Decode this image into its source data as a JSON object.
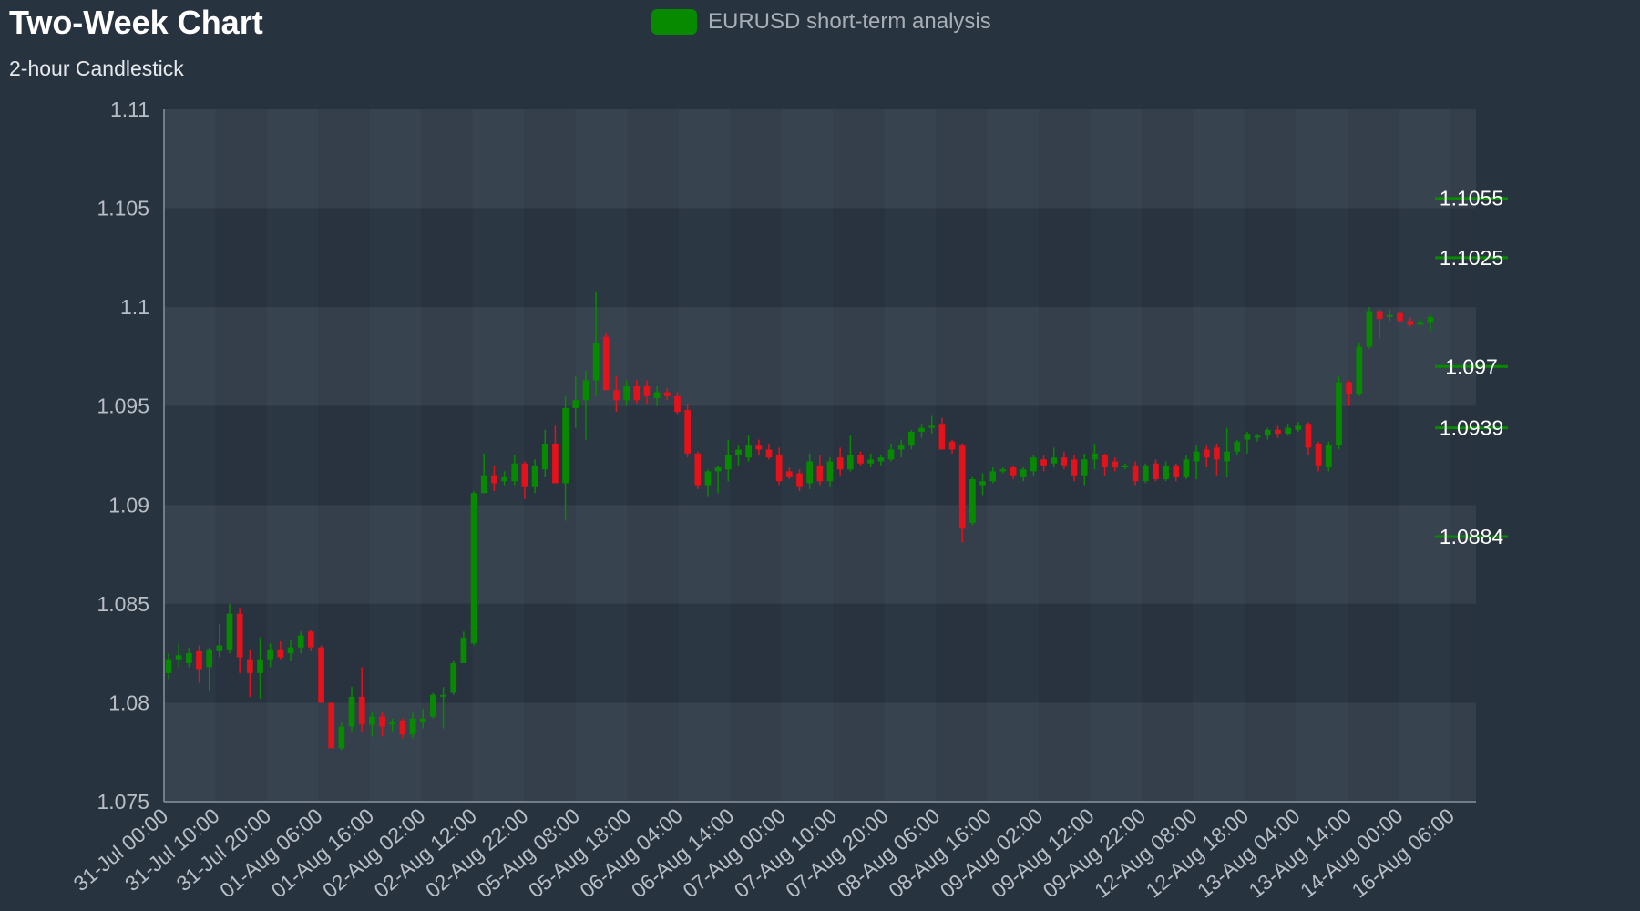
{
  "chart_data": {
    "type": "candlestick",
    "title": "Two-Week Chart",
    "subtitle": "2-hour Candlestick",
    "legend": {
      "label": "EURUSD short-term analysis",
      "color": "#078a00",
      "position": "top-center"
    },
    "colors": {
      "up": "#078a00",
      "down": "#e3121b",
      "background": "#283340",
      "plot_band_light": "#384350",
      "plot_band_dark": "#2c3744"
    },
    "ylim": [
      1.075,
      1.11
    ],
    "y_ticks": [
      "1.11",
      "1.105",
      "1.1",
      "1.095",
      "1.09",
      "1.085",
      "1.08",
      "1.075"
    ],
    "x_ticks": [
      "31-Jul 00:00",
      "31-Jul 10:00",
      "31-Jul 20:00",
      "01-Aug 06:00",
      "01-Aug 16:00",
      "02-Aug 02:00",
      "02-Aug 12:00",
      "02-Aug 22:00",
      "05-Aug 08:00",
      "05-Aug 18:00",
      "06-Aug 04:00",
      "06-Aug 14:00",
      "07-Aug 00:00",
      "07-Aug 10:00",
      "07-Aug 20:00",
      "08-Aug 06:00",
      "08-Aug 16:00",
      "09-Aug 02:00",
      "09-Aug 12:00",
      "09-Aug 22:00",
      "12-Aug 08:00",
      "12-Aug 18:00",
      "13-Aug 04:00",
      "13-Aug 14:00",
      "14-Aug 00:00",
      "16-Aug 06:00"
    ],
    "levels": [
      {
        "value": 1.1055,
        "label": "1.1055"
      },
      {
        "value": 1.1025,
        "label": "1.1025"
      },
      {
        "value": 1.097,
        "label": "1.097"
      },
      {
        "value": 1.0939,
        "label": "1.0939"
      },
      {
        "value": 1.0884,
        "label": "1.0884"
      }
    ],
    "candles": [
      {
        "o": 1.0815,
        "h": 1.0825,
        "l": 1.0812,
        "c": 1.0822
      },
      {
        "o": 1.0822,
        "h": 1.083,
        "l": 1.0818,
        "c": 1.0824
      },
      {
        "o": 1.082,
        "h": 1.0828,
        "l": 1.0818,
        "c": 1.0825
      },
      {
        "o": 1.0826,
        "h": 1.0829,
        "l": 1.081,
        "c": 1.0817
      },
      {
        "o": 1.0818,
        "h": 1.0828,
        "l": 1.0806,
        "c": 1.0827
      },
      {
        "o": 1.0826,
        "h": 1.084,
        "l": 1.0823,
        "c": 1.0829
      },
      {
        "o": 1.0827,
        "h": 1.085,
        "l": 1.0825,
        "c": 1.0845
      },
      {
        "o": 1.0845,
        "h": 1.0848,
        "l": 1.0815,
        "c": 1.0823
      },
      {
        "o": 1.0822,
        "h": 1.0827,
        "l": 1.0803,
        "c": 1.0815
      },
      {
        "o": 1.0815,
        "h": 1.0833,
        "l": 1.0802,
        "c": 1.0822
      },
      {
        "o": 1.0822,
        "h": 1.083,
        "l": 1.0818,
        "c": 1.0827
      },
      {
        "o": 1.0827,
        "h": 1.0831,
        "l": 1.0822,
        "c": 1.0823
      },
      {
        "o": 1.0825,
        "h": 1.0832,
        "l": 1.0821,
        "c": 1.0828
      },
      {
        "o": 1.0828,
        "h": 1.0836,
        "l": 1.0825,
        "c": 1.0834
      },
      {
        "o": 1.0836,
        "h": 1.0837,
        "l": 1.0826,
        "c": 1.0828
      },
      {
        "o": 1.0828,
        "h": 1.0829,
        "l": 1.08,
        "c": 1.08
      },
      {
        "o": 1.08,
        "h": 1.08,
        "l": 1.0777,
        "c": 1.0777
      },
      {
        "o": 1.0777,
        "h": 1.079,
        "l": 1.0776,
        "c": 1.0788
      },
      {
        "o": 1.0788,
        "h": 1.0808,
        "l": 1.0785,
        "c": 1.0803
      },
      {
        "o": 1.0803,
        "h": 1.0818,
        "l": 1.0785,
        "c": 1.0789
      },
      {
        "o": 1.0789,
        "h": 1.0795,
        "l": 1.0783,
        "c": 1.0793
      },
      {
        "o": 1.0793,
        "h": 1.0795,
        "l": 1.0783,
        "c": 1.0788
      },
      {
        "o": 1.0789,
        "h": 1.0792,
        "l": 1.0785,
        "c": 1.079
      },
      {
        "o": 1.0791,
        "h": 1.0792,
        "l": 1.0782,
        "c": 1.0784
      },
      {
        "o": 1.0784,
        "h": 1.0795,
        "l": 1.0782,
        "c": 1.0792
      },
      {
        "o": 1.079,
        "h": 1.0797,
        "l": 1.0787,
        "c": 1.0792
      },
      {
        "o": 1.0793,
        "h": 1.0805,
        "l": 1.0792,
        "c": 1.0804
      },
      {
        "o": 1.0803,
        "h": 1.0808,
        "l": 1.0787,
        "c": 1.0804
      },
      {
        "o": 1.0805,
        "h": 1.0821,
        "l": 1.0804,
        "c": 1.082
      },
      {
        "o": 1.082,
        "h": 1.0836,
        "l": 1.082,
        "c": 1.0833
      },
      {
        "o": 1.083,
        "h": 1.0907,
        "l": 1.0829,
        "c": 1.0906
      },
      {
        "o": 1.0906,
        "h": 1.0926,
        "l": 1.0906,
        "c": 1.0915
      },
      {
        "o": 1.0915,
        "h": 1.092,
        "l": 1.0907,
        "c": 1.0911
      },
      {
        "o": 1.0912,
        "h": 1.0917,
        "l": 1.091,
        "c": 1.0914
      },
      {
        "o": 1.0912,
        "h": 1.0925,
        "l": 1.091,
        "c": 1.0921
      },
      {
        "o": 1.0921,
        "h": 1.0922,
        "l": 1.0903,
        "c": 1.0909
      },
      {
        "o": 1.0909,
        "h": 1.0923,
        "l": 1.0906,
        "c": 1.092
      },
      {
        "o": 1.0918,
        "h": 1.0938,
        "l": 1.0914,
        "c": 1.0931
      },
      {
        "o": 1.0931,
        "h": 1.094,
        "l": 1.0911,
        "c": 1.0911
      },
      {
        "o": 1.0911,
        "h": 1.0955,
        "l": 1.0892,
        "c": 1.0949
      },
      {
        "o": 1.0949,
        "h": 1.0965,
        "l": 1.0939,
        "c": 1.0953
      },
      {
        "o": 1.0953,
        "h": 1.0968,
        "l": 1.0933,
        "c": 1.0963
      },
      {
        "o": 1.0963,
        "h": 1.1008,
        "l": 1.0955,
        "c": 1.0982
      },
      {
        "o": 1.0985,
        "h": 1.0987,
        "l": 1.0958,
        "c": 1.0958
      },
      {
        "o": 1.0958,
        "h": 1.0965,
        "l": 1.0947,
        "c": 1.0953
      },
      {
        "o": 1.0953,
        "h": 1.0963,
        "l": 1.095,
        "c": 1.096
      },
      {
        "o": 1.096,
        "h": 1.0963,
        "l": 1.0951,
        "c": 1.0953
      },
      {
        "o": 1.096,
        "h": 1.0963,
        "l": 1.0951,
        "c": 1.0955
      },
      {
        "o": 1.0954,
        "h": 1.096,
        "l": 1.095,
        "c": 1.0957
      },
      {
        "o": 1.0957,
        "h": 1.0959,
        "l": 1.0953,
        "c": 1.0955
      },
      {
        "o": 1.0955,
        "h": 1.0957,
        "l": 1.0946,
        "c": 1.0947
      },
      {
        "o": 1.0948,
        "h": 1.0951,
        "l": 1.0924,
        "c": 1.0926
      },
      {
        "o": 1.0926,
        "h": 1.0927,
        "l": 1.0908,
        "c": 1.091
      },
      {
        "o": 1.091,
        "h": 1.0918,
        "l": 1.0904,
        "c": 1.0917
      },
      {
        "o": 1.0917,
        "h": 1.092,
        "l": 1.0906,
        "c": 1.0919
      },
      {
        "o": 1.0918,
        "h": 1.0933,
        "l": 1.0912,
        "c": 1.0925
      },
      {
        "o": 1.0925,
        "h": 1.093,
        "l": 1.092,
        "c": 1.0928
      },
      {
        "o": 1.0924,
        "h": 1.0935,
        "l": 1.0922,
        "c": 1.093
      },
      {
        "o": 1.093,
        "h": 1.0933,
        "l": 1.0925,
        "c": 1.0928
      },
      {
        "o": 1.0928,
        "h": 1.0931,
        "l": 1.0923,
        "c": 1.0924
      },
      {
        "o": 1.0925,
        "h": 1.0929,
        "l": 1.091,
        "c": 1.0912
      },
      {
        "o": 1.0917,
        "h": 1.0919,
        "l": 1.0913,
        "c": 1.0914
      },
      {
        "o": 1.0916,
        "h": 1.0918,
        "l": 1.0907,
        "c": 1.0909
      },
      {
        "o": 1.0911,
        "h": 1.0926,
        "l": 1.0908,
        "c": 1.0922
      },
      {
        "o": 1.092,
        "h": 1.0925,
        "l": 1.091,
        "c": 1.0912
      },
      {
        "o": 1.0912,
        "h": 1.0924,
        "l": 1.0909,
        "c": 1.0922
      },
      {
        "o": 1.0924,
        "h": 1.0929,
        "l": 1.0915,
        "c": 1.0918
      },
      {
        "o": 1.0918,
        "h": 1.0935,
        "l": 1.0917,
        "c": 1.0925
      },
      {
        "o": 1.0925,
        "h": 1.0927,
        "l": 1.092,
        "c": 1.0921
      },
      {
        "o": 1.0921,
        "h": 1.0926,
        "l": 1.0919,
        "c": 1.0923
      },
      {
        "o": 1.0922,
        "h": 1.0925,
        "l": 1.092,
        "c": 1.0924
      },
      {
        "o": 1.0923,
        "h": 1.0931,
        "l": 1.0922,
        "c": 1.0928
      },
      {
        "o": 1.0928,
        "h": 1.0933,
        "l": 1.0924,
        "c": 1.093
      },
      {
        "o": 1.093,
        "h": 1.0938,
        "l": 1.0928,
        "c": 1.0937
      },
      {
        "o": 1.0937,
        "h": 1.0941,
        "l": 1.0934,
        "c": 1.0939
      },
      {
        "o": 1.0939,
        "h": 1.0945,
        "l": 1.0936,
        "c": 1.094
      },
      {
        "o": 1.0941,
        "h": 1.0944,
        "l": 1.0928,
        "c": 1.0928
      },
      {
        "o": 1.0932,
        "h": 1.0933,
        "l": 1.0926,
        "c": 1.0928
      },
      {
        "o": 1.093,
        "h": 1.0931,
        "l": 1.0881,
        "c": 1.0888
      },
      {
        "o": 1.0891,
        "h": 1.0914,
        "l": 1.089,
        "c": 1.0913
      },
      {
        "o": 1.091,
        "h": 1.0916,
        "l": 1.0905,
        "c": 1.0912
      },
      {
        "o": 1.0912,
        "h": 1.0919,
        "l": 1.0911,
        "c": 1.0917
      },
      {
        "o": 1.0917,
        "h": 1.0919,
        "l": 1.0916,
        "c": 1.0918
      },
      {
        "o": 1.0919,
        "h": 1.092,
        "l": 1.0913,
        "c": 1.0915
      },
      {
        "o": 1.0914,
        "h": 1.0919,
        "l": 1.0912,
        "c": 1.0918
      },
      {
        "o": 1.0917,
        "h": 1.0925,
        "l": 1.0915,
        "c": 1.0924
      },
      {
        "o": 1.0923,
        "h": 1.0925,
        "l": 1.0917,
        "c": 1.092
      },
      {
        "o": 1.0921,
        "h": 1.0929,
        "l": 1.0919,
        "c": 1.0924
      },
      {
        "o": 1.0924,
        "h": 1.0927,
        "l": 1.0918,
        "c": 1.092
      },
      {
        "o": 1.0923,
        "h": 1.0925,
        "l": 1.0912,
        "c": 1.0915
      },
      {
        "o": 1.0915,
        "h": 1.0926,
        "l": 1.091,
        "c": 1.0923
      },
      {
        "o": 1.0923,
        "h": 1.0931,
        "l": 1.0918,
        "c": 1.0926
      },
      {
        "o": 1.0925,
        "h": 1.0926,
        "l": 1.0915,
        "c": 1.0919
      },
      {
        "o": 1.0922,
        "h": 1.0924,
        "l": 1.0917,
        "c": 1.0919
      },
      {
        "o": 1.0919,
        "h": 1.0921,
        "l": 1.0918,
        "c": 1.092
      },
      {
        "o": 1.092,
        "h": 1.0922,
        "l": 1.091,
        "c": 1.0912
      },
      {
        "o": 1.0912,
        "h": 1.0921,
        "l": 1.0911,
        "c": 1.092
      },
      {
        "o": 1.0921,
        "h": 1.0923,
        "l": 1.0912,
        "c": 1.0913
      },
      {
        "o": 1.0913,
        "h": 1.0922,
        "l": 1.0912,
        "c": 1.092
      },
      {
        "o": 1.092,
        "h": 1.0921,
        "l": 1.0912,
        "c": 1.0914
      },
      {
        "o": 1.0914,
        "h": 1.0925,
        "l": 1.0913,
        "c": 1.0923
      },
      {
        "o": 1.0922,
        "h": 1.093,
        "l": 1.0913,
        "c": 1.0927
      },
      {
        "o": 1.0928,
        "h": 1.093,
        "l": 1.0919,
        "c": 1.0924
      },
      {
        "o": 1.0929,
        "h": 1.0931,
        "l": 1.0915,
        "c": 1.0923
      },
      {
        "o": 1.0922,
        "h": 1.0939,
        "l": 1.0914,
        "c": 1.0927
      },
      {
        "o": 1.0927,
        "h": 1.0933,
        "l": 1.0925,
        "c": 1.0932
      },
      {
        "o": 1.0933,
        "h": 1.0937,
        "l": 1.0926,
        "c": 1.0936
      },
      {
        "o": 1.0934,
        "h": 1.0936,
        "l": 1.0932,
        "c": 1.0935
      },
      {
        "o": 1.0935,
        "h": 1.0939,
        "l": 1.0933,
        "c": 1.0938
      },
      {
        "o": 1.0938,
        "h": 1.094,
        "l": 1.0934,
        "c": 1.0936
      },
      {
        "o": 1.0936,
        "h": 1.0941,
        "l": 1.0935,
        "c": 1.0939
      },
      {
        "o": 1.0938,
        "h": 1.0942,
        "l": 1.0937,
        "c": 1.094
      },
      {
        "o": 1.0941,
        "h": 1.0942,
        "l": 1.0925,
        "c": 1.0929
      },
      {
        "o": 1.0931,
        "h": 1.0932,
        "l": 1.0917,
        "c": 1.092
      },
      {
        "o": 1.0919,
        "h": 1.0932,
        "l": 1.0917,
        "c": 1.093
      },
      {
        "o": 1.093,
        "h": 1.0965,
        "l": 1.0928,
        "c": 1.0962
      },
      {
        "o": 1.0962,
        "h": 1.0963,
        "l": 1.095,
        "c": 1.0956
      },
      {
        "o": 1.0956,
        "h": 1.0982,
        "l": 1.0955,
        "c": 1.098
      },
      {
        "o": 1.098,
        "h": 1.1,
        "l": 1.0979,
        "c": 1.0998
      },
      {
        "o": 1.0998,
        "h": 1.0999,
        "l": 1.0984,
        "c": 1.0994
      },
      {
        "o": 1.0996,
        "h": 1.0999,
        "l": 1.0993,
        "c": 1.0996
      },
      {
        "o": 1.0997,
        "h": 1.0998,
        "l": 1.0992,
        "c": 1.0993
      },
      {
        "o": 1.0993,
        "h": 1.0995,
        "l": 1.099,
        "c": 1.0991
      },
      {
        "o": 1.0992,
        "h": 1.0994,
        "l": 1.0991,
        "c": 1.0992
      },
      {
        "o": 1.0992,
        "h": 1.0996,
        "l": 1.0988,
        "c": 1.0995
      }
    ]
  }
}
